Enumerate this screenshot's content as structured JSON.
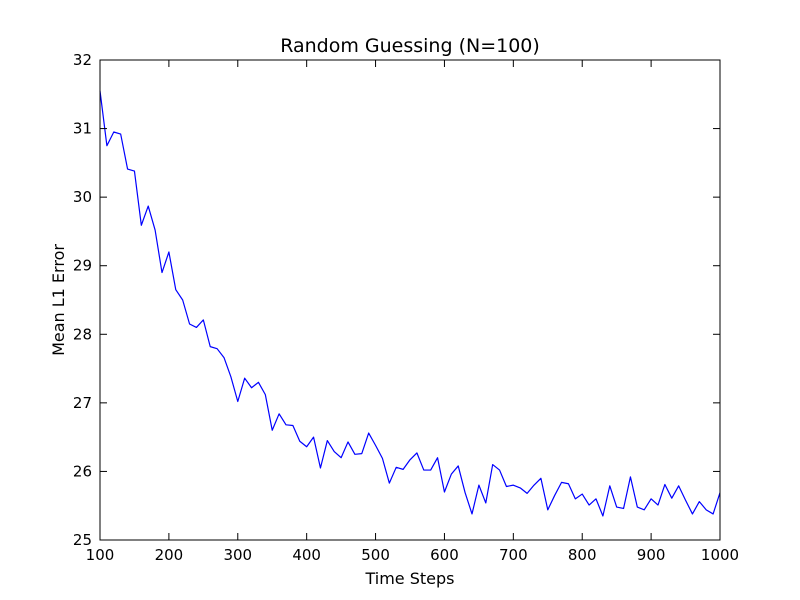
{
  "chart_data": {
    "type": "line",
    "title": "Random Guessing (N=100)",
    "xlabel": "Time Steps",
    "ylabel": "Mean L1 Error",
    "xlim": [
      100,
      1000
    ],
    "ylim": [
      25,
      32
    ],
    "xticks": [
      100,
      200,
      300,
      400,
      500,
      600,
      700,
      800,
      900,
      1000
    ],
    "yticks": [
      25,
      26,
      27,
      28,
      29,
      30,
      31,
      32
    ],
    "grid": false,
    "series": [
      {
        "color": "#0000ff",
        "x": [
          100,
          110,
          120,
          130,
          140,
          150,
          160,
          170,
          180,
          190,
          200,
          210,
          220,
          230,
          240,
          250,
          260,
          270,
          280,
          290,
          300,
          310,
          320,
          330,
          340,
          350,
          360,
          370,
          380,
          390,
          400,
          410,
          420,
          430,
          440,
          450,
          460,
          470,
          480,
          490,
          500,
          510,
          520,
          530,
          540,
          550,
          560,
          570,
          580,
          590,
          600,
          610,
          620,
          630,
          640,
          650,
          660,
          670,
          680,
          690,
          700,
          710,
          720,
          730,
          740,
          750,
          760,
          770,
          780,
          790,
          800,
          810,
          820,
          830,
          840,
          850,
          860,
          870,
          880,
          890,
          900,
          910,
          920,
          930,
          940,
          950,
          960,
          970,
          980,
          990,
          1000
        ],
        "values": [
          31.55,
          30.75,
          30.95,
          30.92,
          30.41,
          30.38,
          29.59,
          29.87,
          29.52,
          28.9,
          29.2,
          28.65,
          28.5,
          28.15,
          28.1,
          28.21,
          27.82,
          27.79,
          27.66,
          27.38,
          27.02,
          27.36,
          27.22,
          27.3,
          27.12,
          26.6,
          26.84,
          26.68,
          26.67,
          26.44,
          26.36,
          26.5,
          26.05,
          26.45,
          26.29,
          26.2,
          26.43,
          26.25,
          26.26,
          26.56,
          26.38,
          26.19,
          25.83,
          26.06,
          26.03,
          26.17,
          26.27,
          26.02,
          26.02,
          26.2,
          25.7,
          25.96,
          26.08,
          25.69,
          25.38,
          25.8,
          25.54,
          26.1,
          26.02,
          25.78,
          25.8,
          25.76,
          25.68,
          25.8,
          25.9,
          25.44,
          25.65,
          25.84,
          25.82,
          25.6,
          25.67,
          25.51,
          25.6,
          25.35,
          25.79,
          25.48,
          25.46,
          25.92,
          25.48,
          25.44,
          25.6,
          25.51,
          25.81,
          25.61,
          25.79,
          25.58,
          25.38,
          25.56,
          25.44,
          25.38,
          25.69
        ]
      }
    ]
  }
}
